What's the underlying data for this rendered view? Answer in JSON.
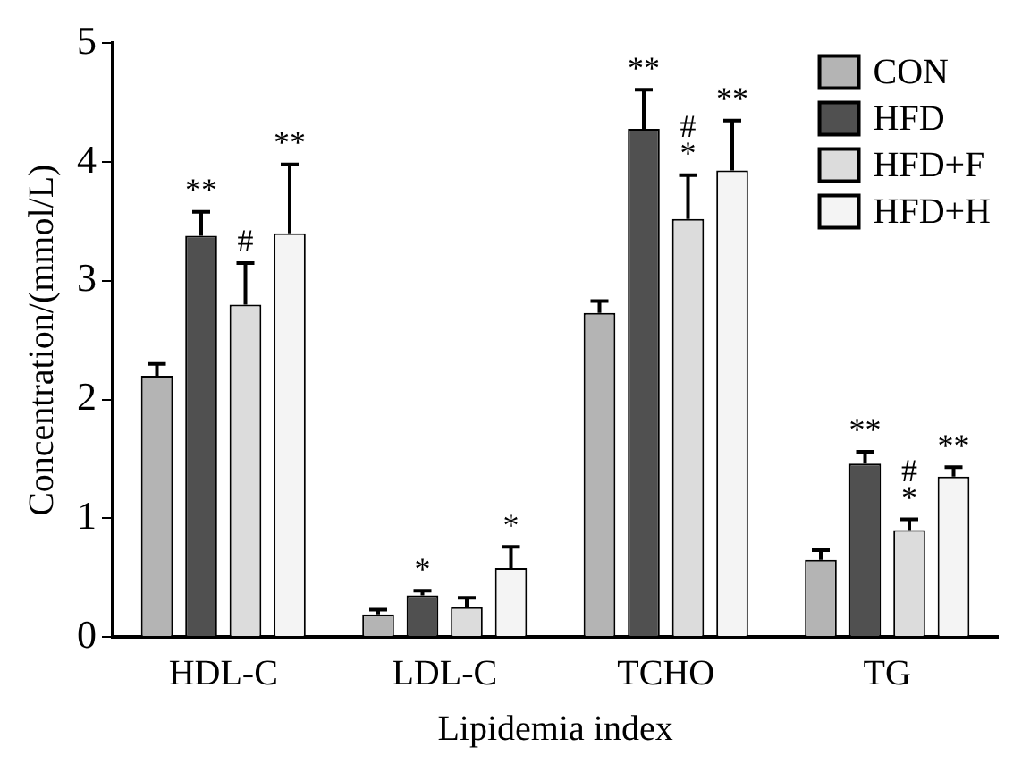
{
  "chart_data": {
    "type": "bar",
    "xlabel": "Lipidemia index",
    "ylabel": "Concentration/(mmol/L)",
    "categories": [
      "HDL-C",
      "LDL-C",
      "TCHO",
      "TG"
    ],
    "series": [
      {
        "name": "CON",
        "color": "#b4b4b4",
        "values": [
          2.2,
          0.19,
          2.73,
          0.65
        ],
        "errors": [
          0.1,
          0.04,
          0.1,
          0.08
        ]
      },
      {
        "name": "HFD",
        "color": "#505050",
        "values": [
          3.38,
          0.35,
          4.28,
          1.46
        ],
        "errors": [
          0.2,
          0.04,
          0.33,
          0.1
        ]
      },
      {
        "name": "HFD+F",
        "color": "#dcdcdc",
        "values": [
          2.8,
          0.25,
          3.52,
          0.9
        ],
        "errors": [
          0.35,
          0.08,
          0.37,
          0.09
        ]
      },
      {
        "name": "HFD+H",
        "color": "#f4f4f4",
        "values": [
          3.4,
          0.58,
          3.93,
          1.35
        ],
        "errors": [
          0.58,
          0.18,
          0.42,
          0.08
        ]
      }
    ],
    "ylim": [
      0,
      5
    ],
    "yticks": [
      0,
      1,
      2,
      3,
      4,
      5
    ],
    "grid": false,
    "legend": "top right",
    "annotations": [
      {
        "text": "**",
        "x": "HDL-C",
        "y": 3.38
      },
      {
        "text": "#",
        "x": "HDL-C",
        "y": 2.8
      },
      "**",
      {
        "text": "*",
        "x": "LDL-C",
        "y": 0.35
      },
      "*",
      {
        "text": "**",
        "x": "TCHO",
        "y": 4.28
      },
      {
        "text": "*",
        "x": "TCHO",
        "y": 3.52
      },
      {
        "text": "#",
        "x": "TCHO",
        "y": 3.52
      },
      {
        "text": "**",
        "x": "TCHO",
        "y": 3.93
      },
      {
        "text": "**",
        "x": "TG",
        "y": 1.46
      },
      {
        "text": "*",
        "x": "TG",
        "y": 0.9
      },
      {
        "text": "#",
        "x": "TG",
        "y": 0.9
      },
      {
        "text": "**",
        "x": "TG",
        "y": 1.35
      }
    ]
  }
}
